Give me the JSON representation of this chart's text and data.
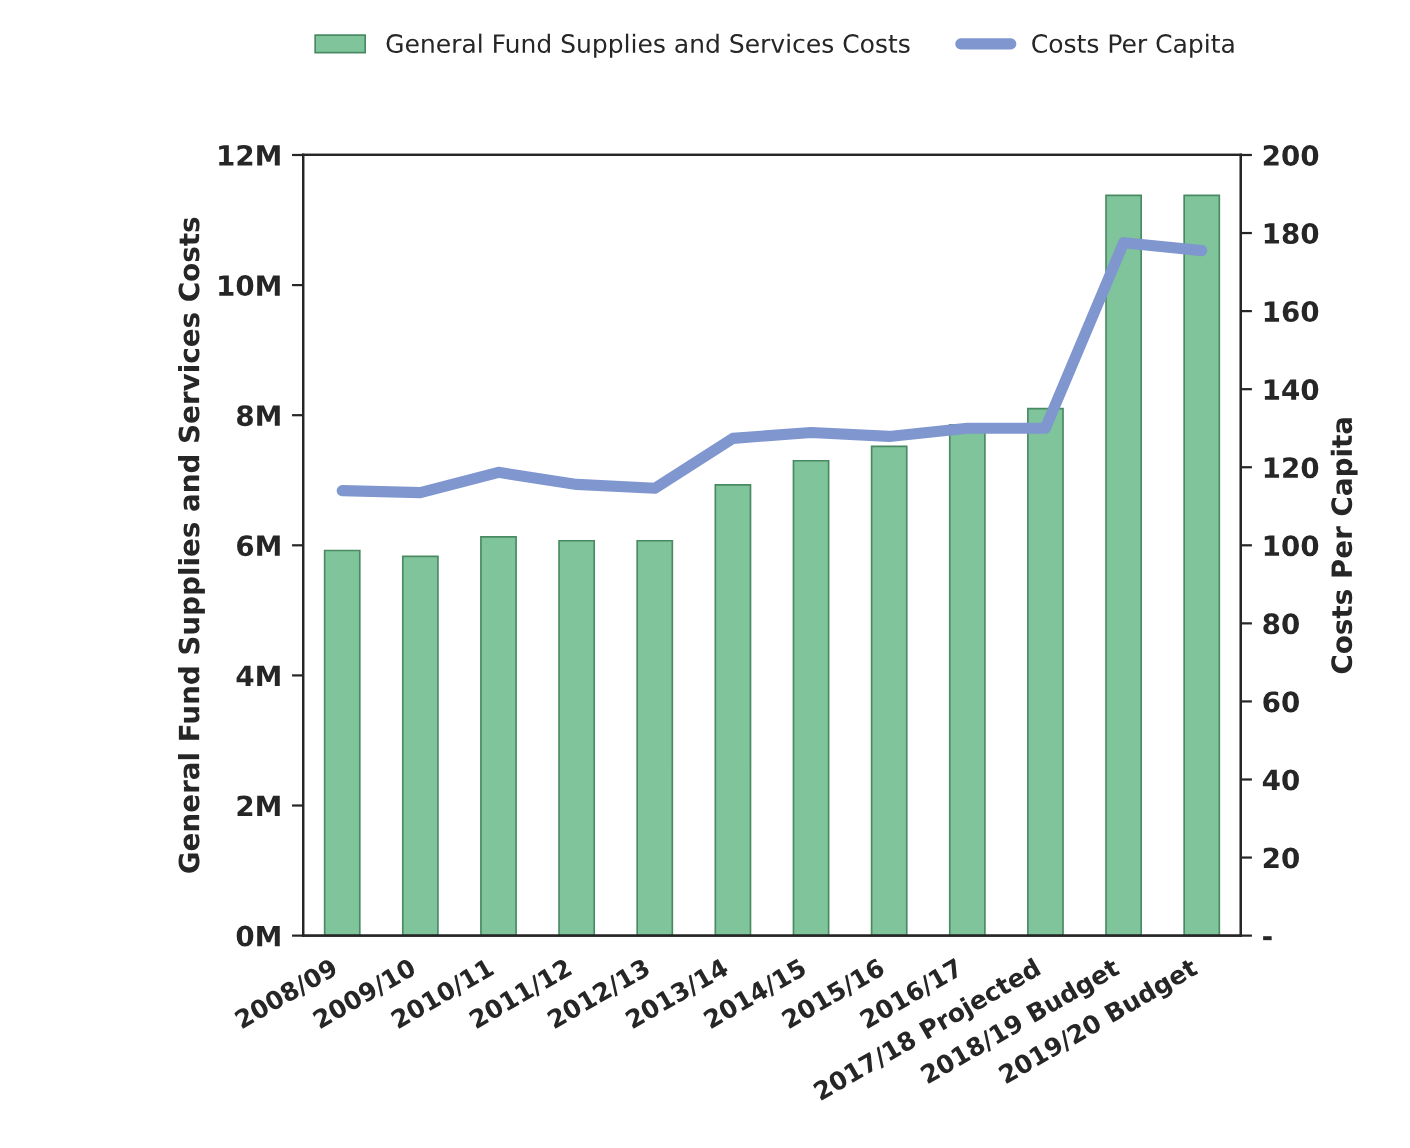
{
  "chart_data": {
    "type": "bar",
    "categories": [
      "2008/09",
      "2009/10",
      "2010/11",
      "2011/12",
      "2012/13",
      "2013/14",
      "2014/15",
      "2015/16",
      "2016/17",
      "2017/18 Projected",
      "2018/19 Budget",
      "2019/20 Budget"
    ],
    "series": [
      {
        "name": "General Fund Supplies and Services Costs",
        "color": "#7fc49a",
        "values": [
          5.92,
          5.83,
          6.13,
          6.07,
          6.07,
          6.93,
          7.3,
          7.52,
          7.85,
          8.1,
          11.38,
          11.38
        ]
      },
      {
        "name": "Costs Per Capita",
        "type": "line",
        "axis": "y2",
        "color": "#7f96cf",
        "values": [
          114,
          113.5,
          118.7,
          115.6,
          114.6,
          127.4,
          128.9,
          127.9,
          130,
          130,
          177.5,
          175.5
        ]
      }
    ],
    "ylabel": "General Fund Supplies and Services Costs",
    "y2label": "Costs Per Capita",
    "ylim": [
      0,
      12
    ],
    "yticks": [
      {
        "value": 0,
        "label": "0M"
      },
      {
        "value": 2,
        "label": "2M"
      },
      {
        "value": 4,
        "label": "4M"
      },
      {
        "value": 6,
        "label": "6M"
      },
      {
        "value": 8,
        "label": "8M"
      },
      {
        "value": 10,
        "label": "10M"
      },
      {
        "value": 12,
        "label": "12M"
      }
    ],
    "y2lim": [
      0,
      200
    ],
    "y2ticks": [
      {
        "value": 0,
        "label": "-"
      },
      20,
      40,
      60,
      80,
      100,
      120,
      140,
      160,
      180,
      200
    ],
    "grid": false,
    "legend": "top"
  }
}
